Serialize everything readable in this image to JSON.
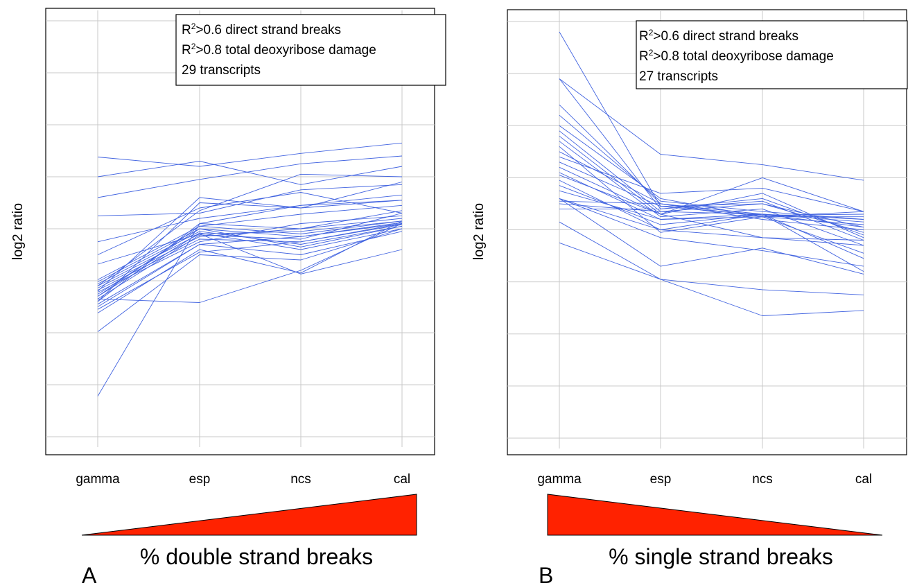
{
  "colors": {
    "series": "#4163e0",
    "wedge": "#ff2200",
    "grid": "#c8c8c8"
  },
  "chart_data": [
    {
      "type": "line",
      "panel_label": "A",
      "ylabel": "log2 ratio",
      "categories": [
        "gamma",
        "esp",
        "ncs",
        "cal"
      ],
      "ylim": [
        -4.2,
        4.2
      ],
      "y_gridlines": [
        -4,
        -3,
        -2,
        -1,
        0,
        1,
        2,
        3,
        4
      ],
      "grid": true,
      "legend_placement": "top-right",
      "legend": {
        "line1_pre": "R",
        "line1_sup": "2",
        "line1_post": ">0.6 direct strand breaks",
        "line2_pre": "R",
        "line2_sup": "2",
        "line2_post": ">0.8 total deoxyribose damage",
        "line3": "29 transcripts"
      },
      "axis_caption": "% double strand breaks",
      "wedge_direction": "increasing",
      "series": [
        {
          "values": [
            -0.98,
            0.05,
            -0.1,
            0.15
          ]
        },
        {
          "values": [
            -1.02,
            0.0,
            -0.15,
            0.1
          ]
        },
        {
          "values": [
            -1.06,
            -0.05,
            -0.3,
            0.05
          ]
        },
        {
          "values": [
            -1.1,
            -0.1,
            -0.05,
            0.15
          ]
        },
        {
          "values": [
            -1.14,
            -0.15,
            0.0,
            0.2
          ]
        },
        {
          "values": [
            -1.18,
            -0.2,
            -0.25,
            0.1
          ]
        },
        {
          "values": [
            -1.22,
            -0.25,
            0.1,
            0.25
          ]
        },
        {
          "values": [
            -1.26,
            0.0,
            -0.35,
            0.05
          ]
        },
        {
          "values": [
            -1.3,
            -0.08,
            -0.4,
            0.0
          ]
        },
        {
          "values": [
            -1.35,
            -0.12,
            -0.2,
            0.3
          ]
        },
        {
          "values": [
            -1.4,
            0.1,
            0.0,
            0.35
          ]
        },
        {
          "values": [
            -1.45,
            -0.3,
            -0.15,
            0.12
          ]
        },
        {
          "values": [
            -1.5,
            -0.3,
            -0.5,
            -0.05
          ]
        },
        {
          "values": [
            -1.55,
            -0.45,
            -0.25,
            0.08
          ]
        },
        {
          "values": [
            -1.62,
            -0.4,
            -0.85,
            0.15
          ]
        },
        {
          "values": [
            -1.98,
            -0.5,
            -0.6,
            0.0
          ]
        },
        {
          "values": [
            -0.68,
            -0.1,
            -0.87,
            -0.4
          ]
        },
        {
          "values": [
            -1.35,
            -1.42,
            -0.8,
            0.1
          ]
        },
        {
          "values": [
            -3.22,
            0.1,
            0.45,
            0.55
          ]
        },
        {
          "values": [
            -0.25,
            0.2,
            0.45,
            0.65
          ]
        },
        {
          "values": [
            0.25,
            0.3,
            0.75,
            0.85
          ]
        },
        {
          "values": [
            0.6,
            0.95,
            1.25,
            1.4
          ]
        },
        {
          "values": [
            1.0,
            1.3,
            0.85,
            1.2
          ]
        },
        {
          "values": [
            1.38,
            1.2,
            1.45,
            1.65
          ]
        },
        {
          "values": [
            -0.5,
            0.4,
            0.7,
            0.3
          ]
        },
        {
          "values": [
            -1.4,
            0.5,
            0.4,
            0.55
          ]
        },
        {
          "values": [
            -1.2,
            0.6,
            0.4,
            0.9
          ]
        },
        {
          "values": [
            -1.1,
            0.35,
            1.05,
            1.0
          ]
        },
        {
          "values": [
            -1.3,
            0.05,
            0.28,
            0.45
          ]
        }
      ]
    },
    {
      "type": "line",
      "panel_label": "B",
      "ylabel": "log2 ratio",
      "categories": [
        "gamma",
        "esp",
        "ncs",
        "cal"
      ],
      "ylim": [
        -4.2,
        4.2
      ],
      "y_gridlines": [
        -4,
        -3,
        -2,
        -1,
        0,
        1,
        2,
        3,
        4
      ],
      "grid": true,
      "legend_placement": "top-right",
      "legend": {
        "line1_pre": "R",
        "line1_sup": "2",
        "line1_post": ">0.6 direct strand breaks",
        "line2_pre": "R",
        "line2_sup": "2",
        "line2_post": ">0.8 total deoxyribose damage",
        "line3": "27 transcripts"
      },
      "axis_caption": "% single strand breaks",
      "wedge_direction": "decreasing",
      "series": [
        {
          "values": [
            3.8,
            0.45,
            0.28,
            0.3
          ]
        },
        {
          "values": [
            2.9,
            0.4,
            0.6,
            -0.1
          ]
        },
        {
          "values": [
            2.9,
            1.45,
            1.25,
            0.95
          ]
        },
        {
          "values": [
            2.4,
            0.5,
            0.3,
            0.15
          ]
        },
        {
          "values": [
            2.2,
            0.55,
            0.35,
            0.2
          ]
        },
        {
          "values": [
            2.0,
            0.6,
            0.25,
            0.25
          ]
        },
        {
          "values": [
            1.9,
            0.35,
            0.5,
            0.05
          ]
        },
        {
          "values": [
            1.8,
            0.3,
            0.7,
            -0.15
          ]
        },
        {
          "values": [
            1.7,
            0.25,
            0.4,
            -0.3
          ]
        },
        {
          "values": [
            1.6,
            -0.05,
            0.25,
            0.1
          ]
        },
        {
          "values": [
            1.5,
            0.5,
            0.2,
            0.0
          ]
        },
        {
          "values": [
            1.4,
            0.7,
            0.8,
            0.35
          ]
        },
        {
          "values": [
            1.3,
            0.45,
            0.5,
            -0.05
          ]
        },
        {
          "values": [
            1.2,
            0.3,
            -0.15,
            -0.3
          ]
        },
        {
          "values": [
            1.1,
            0.2,
            0.3,
            -0.55
          ]
        },
        {
          "values": [
            1.05,
            0.3,
            1.0,
            0.35
          ]
        },
        {
          "values": [
            0.95,
            0.0,
            -0.15,
            -0.2
          ]
        },
        {
          "values": [
            0.85,
            0.1,
            0.3,
            0.2
          ]
        },
        {
          "values": [
            0.75,
            0.2,
            0.25,
            -0.45
          ]
        },
        {
          "values": [
            0.6,
            -0.15,
            -0.4,
            -0.7
          ]
        },
        {
          "values": [
            0.6,
            0.0,
            0.3,
            0.05
          ]
        },
        {
          "values": [
            0.55,
            0.5,
            0.25,
            0.35
          ]
        },
        {
          "values": [
            0.5,
            0.35,
            0.3,
            -0.8
          ]
        },
        {
          "values": [
            0.4,
            0.4,
            0.55,
            -0.2
          ]
        },
        {
          "values": [
            0.6,
            -0.7,
            -0.35,
            -0.85
          ]
        },
        {
          "values": [
            0.15,
            -0.95,
            -1.15,
            -1.25
          ]
        },
        {
          "values": [
            -0.25,
            -0.95,
            -1.65,
            -1.55
          ]
        }
      ]
    }
  ]
}
